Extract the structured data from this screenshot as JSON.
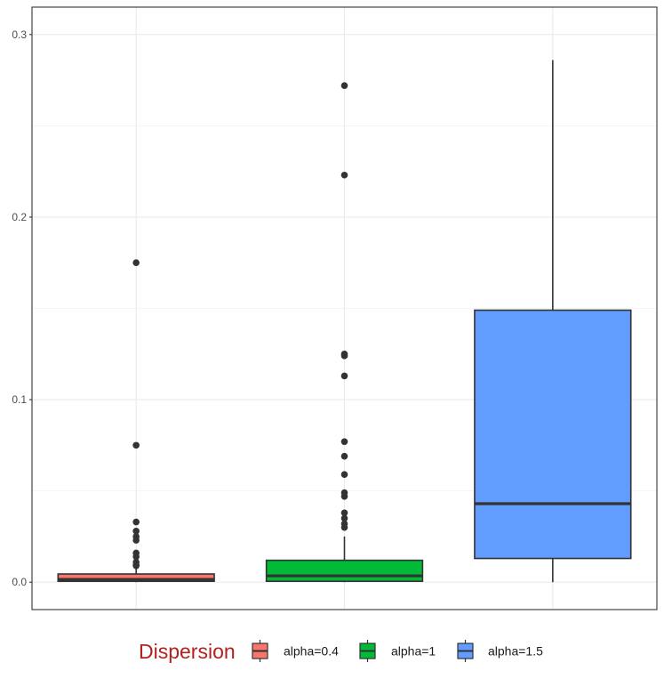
{
  "chart_data": {
    "type": "boxplot",
    "categories": [
      "alpha=0.4",
      "alpha=1",
      "alpha=1.5"
    ],
    "xlabel": "",
    "ylabel": "",
    "ylim": [
      -0.015,
      0.315
    ],
    "yticks": [
      0.0,
      0.1,
      0.2,
      0.3
    ],
    "ytick_labels": [
      "0.0",
      "0.1",
      "0.2",
      "0.3"
    ],
    "grid": true,
    "legend": {
      "title": "Dispersion",
      "position": "bottom",
      "title_color": "#b22222"
    },
    "boxes": [
      {
        "name": "alpha=0.4",
        "color": "#f8766d",
        "whisker_low": 0.0,
        "q1": 0.0005,
        "median": 0.0015,
        "q3": 0.0045,
        "whisker_high": 0.0075,
        "outliers": [
          0.175,
          0.075,
          0.033,
          0.028,
          0.025,
          0.023,
          0.016,
          0.014,
          0.011,
          0.0095,
          0.009
        ]
      },
      {
        "name": "alpha=1",
        "color": "#00ba38",
        "whisker_low": 0.0,
        "q1": 0.0005,
        "median": 0.0035,
        "q3": 0.012,
        "whisker_high": 0.025,
        "outliers": [
          0.272,
          0.223,
          0.125,
          0.124,
          0.113,
          0.077,
          0.069,
          0.059,
          0.049,
          0.047,
          0.038,
          0.035,
          0.032,
          0.03
        ]
      },
      {
        "name": "alpha=1.5",
        "color": "#619cff",
        "whisker_low": 0.0,
        "q1": 0.013,
        "median": 0.043,
        "q3": 0.149,
        "whisker_high": 0.286,
        "outliers": []
      }
    ]
  }
}
